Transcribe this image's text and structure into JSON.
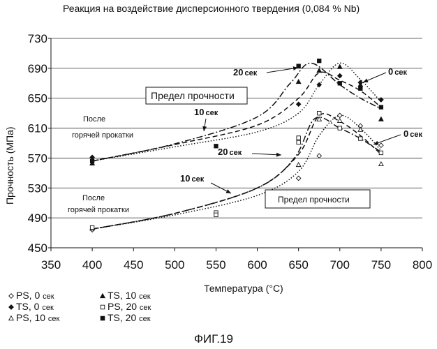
{
  "chart_data": {
    "type": "scatter",
    "title": "Реакция на воздействие дисперсионного твердения (0,084 % Nb)",
    "xlabel": "Температура (°С)",
    "ylabel": "Прочность (МПа)",
    "xlim": [
      350,
      800
    ],
    "ylim": [
      450,
      730
    ],
    "xticks": [
      "350",
      "400",
      "450",
      "500",
      "550",
      "600",
      "650",
      "700",
      "750",
      "800"
    ],
    "yticks": [
      "450",
      "490",
      "530",
      "570",
      "610",
      "650",
      "690",
      "730"
    ],
    "grid": "horizontal",
    "legend_position": "bottom-left",
    "series": [
      {
        "name": "PS, 0",
        "unit": "сек",
        "marker": "diamond-open",
        "points": [
          [
            400,
            474
          ],
          [
            650,
            543
          ],
          [
            675,
            573
          ],
          [
            700,
            627
          ],
          [
            725,
            613
          ],
          [
            750,
            587
          ]
        ]
      },
      {
        "name": "TS, 0",
        "unit": "сек",
        "marker": "diamond-filled",
        "points": [
          [
            400,
            571
          ],
          [
            650,
            642
          ],
          [
            675,
            668
          ],
          [
            700,
            680
          ],
          [
            725,
            671
          ],
          [
            750,
            648
          ]
        ]
      },
      {
        "name": "PS, 10",
        "unit": "сек",
        "marker": "triangle-open",
        "points": [
          [
            400,
            476
          ],
          [
            650,
            561
          ],
          [
            675,
            622
          ],
          [
            700,
            620
          ],
          [
            725,
            608
          ],
          [
            750,
            562
          ]
        ]
      },
      {
        "name": "TS, 10",
        "unit": "сек",
        "marker": "triangle-filled",
        "points": [
          [
            400,
            563
          ],
          [
            650,
            672
          ],
          [
            675,
            687
          ],
          [
            700,
            692
          ],
          [
            725,
            668
          ],
          [
            750,
            622
          ]
        ]
      },
      {
        "name": "PS, 20",
        "unit": "сек",
        "marker": "square-open",
        "points": [
          [
            400,
            477
          ],
          [
            550,
            497
          ],
          [
            550,
            494
          ],
          [
            650,
            597
          ],
          [
            650,
            591
          ],
          [
            675,
            630
          ],
          [
            700,
            610
          ],
          [
            725,
            596
          ],
          [
            750,
            577
          ]
        ]
      },
      {
        "name": "TS, 20",
        "unit": "сек",
        "marker": "square-filled",
        "points": [
          [
            400,
            566
          ],
          [
            550,
            586
          ],
          [
            650,
            693
          ],
          [
            675,
            700
          ],
          [
            700,
            670
          ],
          [
            725,
            663
          ],
          [
            750,
            638
          ]
        ]
      }
    ],
    "curves": [
      {
        "id": "ts0",
        "style": "dotted",
        "points": [
          [
            400,
            566
          ],
          [
            500,
            585
          ],
          [
            600,
            605
          ],
          [
            650,
            630
          ],
          [
            675,
            668
          ],
          [
            700,
            697
          ],
          [
            725,
            675
          ],
          [
            750,
            645
          ]
        ]
      },
      {
        "id": "ts10",
        "style": "dashed",
        "points": [
          [
            400,
            566
          ],
          [
            500,
            588
          ],
          [
            600,
            614
          ],
          [
            650,
            650
          ],
          [
            675,
            684
          ],
          [
            700,
            674
          ],
          [
            725,
            660
          ],
          [
            750,
            638
          ]
        ]
      },
      {
        "id": "ts20",
        "style": "dash-dot",
        "points": [
          [
            400,
            566
          ],
          [
            500,
            589
          ],
          [
            600,
            625
          ],
          [
            640,
            670
          ],
          [
            665,
            697
          ],
          [
            700,
            668
          ],
          [
            725,
            650
          ],
          [
            750,
            636
          ]
        ]
      },
      {
        "id": "ps0",
        "style": "dotted",
        "points": [
          [
            400,
            475
          ],
          [
            500,
            494
          ],
          [
            600,
            520
          ],
          [
            650,
            552
          ],
          [
            675,
            600
          ],
          [
            700,
            627
          ],
          [
            725,
            610
          ],
          [
            750,
            580
          ]
        ]
      },
      {
        "id": "ps10",
        "style": "dashed",
        "points": [
          [
            400,
            475
          ],
          [
            500,
            496
          ],
          [
            600,
            530
          ],
          [
            650,
            575
          ],
          [
            675,
            627
          ],
          [
            700,
            619
          ],
          [
            725,
            600
          ],
          [
            750,
            575
          ]
        ]
      },
      {
        "id": "ps20",
        "style": "dash-dot",
        "points": [
          [
            400,
            475
          ],
          [
            500,
            496
          ],
          [
            600,
            530
          ],
          [
            645,
            570
          ],
          [
            670,
            623
          ],
          [
            700,
            610
          ],
          [
            725,
            596
          ],
          [
            750,
            578
          ]
        ]
      }
    ],
    "annotations": {
      "after_rolling_upper_1": "После",
      "after_rolling_upper_2": "горячей прокатки",
      "after_rolling_lower_1": "После",
      "after_rolling_lower_2": "горячей прокатки",
      "tensile_upper": "Предел прочности",
      "tensile_lower": "Предел прочности",
      "ts20_num": "20",
      "ts20_unit": "сек",
      "ts10_num": "10",
      "ts10_unit": "сек",
      "ts0_num": "0",
      "ts0_unit": "сек",
      "ps20_num": "20",
      "ps20_unit": "сек",
      "ps10_num": "10",
      "ps10_unit": "сек",
      "ps0_num": "0",
      "ps0_unit": "сек"
    },
    "figure_label": "ФИГ.19"
  }
}
